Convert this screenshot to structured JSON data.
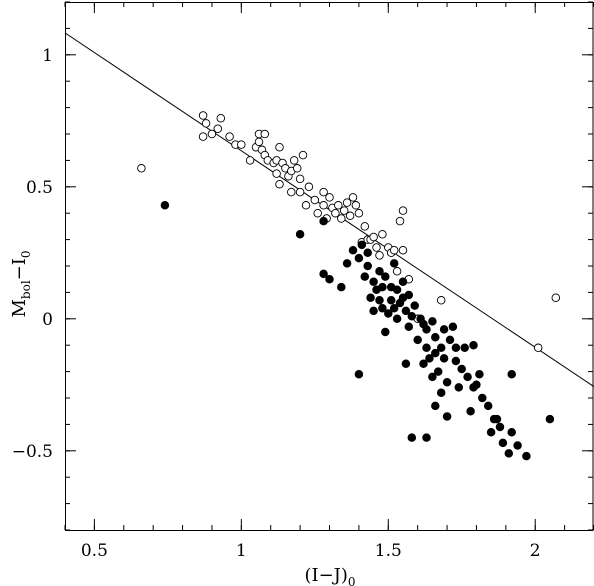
{
  "chart_data": {
    "type": "scatter",
    "title": "",
    "xlabel": "(I−J)",
    "xlabel_sub": "0",
    "ylabel_main": "M",
    "ylabel_sub1": "bol",
    "ylabel_mid": "−I",
    "ylabel_sub2": "0",
    "xlim": [
      0.4,
      2.2
    ],
    "ylim": [
      -0.8,
      1.2
    ],
    "x_ticks": [
      0.5,
      1,
      1.5,
      2
    ],
    "x_tick_labels": [
      "0.5",
      "1",
      "1.5",
      "2"
    ],
    "y_ticks": [
      -0.5,
      0,
      0.5,
      1
    ],
    "y_tick_labels": [
      "−0.5",
      "0",
      "0.5",
      "1"
    ],
    "x_minor_step": 0.1,
    "y_minor_step": 0.1,
    "grid": false,
    "series": [
      {
        "marker": "open-circle",
        "points": [
          [
            0.66,
            0.57
          ],
          [
            0.87,
            0.77
          ],
          [
            0.88,
            0.74
          ],
          [
            0.87,
            0.69
          ],
          [
            0.9,
            0.7
          ],
          [
            0.92,
            0.72
          ],
          [
            0.93,
            0.76
          ],
          [
            0.96,
            0.69
          ],
          [
            0.98,
            0.66
          ],
          [
            1.0,
            0.66
          ],
          [
            1.03,
            0.6
          ],
          [
            1.05,
            0.65
          ],
          [
            1.06,
            0.7
          ],
          [
            1.06,
            0.67
          ],
          [
            1.07,
            0.64
          ],
          [
            1.08,
            0.62
          ],
          [
            1.08,
            0.7
          ],
          [
            1.09,
            0.6
          ],
          [
            1.11,
            0.59
          ],
          [
            1.12,
            0.6
          ],
          [
            1.12,
            0.55
          ],
          [
            1.13,
            0.65
          ],
          [
            1.13,
            0.51
          ],
          [
            1.14,
            0.59
          ],
          [
            1.15,
            0.57
          ],
          [
            1.16,
            0.54
          ],
          [
            1.17,
            0.48
          ],
          [
            1.17,
            0.56
          ],
          [
            1.18,
            0.6
          ],
          [
            1.19,
            0.57
          ],
          [
            1.2,
            0.53
          ],
          [
            1.2,
            0.48
          ],
          [
            1.21,
            0.62
          ],
          [
            1.22,
            0.43
          ],
          [
            1.23,
            0.5
          ],
          [
            1.25,
            0.45
          ],
          [
            1.26,
            0.4
          ],
          [
            1.28,
            0.48
          ],
          [
            1.28,
            0.43
          ],
          [
            1.29,
            0.38
          ],
          [
            1.3,
            0.46
          ],
          [
            1.31,
            0.42
          ],
          [
            1.32,
            0.4
          ],
          [
            1.33,
            0.43
          ],
          [
            1.34,
            0.38
          ],
          [
            1.35,
            0.41
          ],
          [
            1.36,
            0.44
          ],
          [
            1.37,
            0.39
          ],
          [
            1.38,
            0.46
          ],
          [
            1.39,
            0.43
          ],
          [
            1.4,
            0.4
          ],
          [
            1.41,
            0.29
          ],
          [
            1.42,
            0.35
          ],
          [
            1.43,
            0.3
          ],
          [
            1.44,
            0.3
          ],
          [
            1.45,
            0.31
          ],
          [
            1.46,
            0.27
          ],
          [
            1.47,
            0.24
          ],
          [
            1.48,
            0.32
          ],
          [
            1.5,
            0.27
          ],
          [
            1.51,
            0.25
          ],
          [
            1.52,
            0.26
          ],
          [
            1.53,
            0.18
          ],
          [
            1.54,
            0.37
          ],
          [
            1.55,
            0.41
          ],
          [
            1.55,
            0.26
          ],
          [
            1.57,
            0.15
          ],
          [
            1.6,
            0.0
          ],
          [
            1.68,
            0.07
          ],
          [
            2.01,
            -0.11
          ],
          [
            2.07,
            0.08
          ]
        ]
      },
      {
        "marker": "filled-circle",
        "points": [
          [
            0.74,
            0.43
          ],
          [
            1.2,
            0.32
          ],
          [
            1.28,
            0.37
          ],
          [
            1.28,
            0.17
          ],
          [
            1.3,
            0.15
          ],
          [
            1.34,
            0.12
          ],
          [
            1.36,
            0.21
          ],
          [
            1.38,
            0.26
          ],
          [
            1.4,
            0.23
          ],
          [
            1.41,
            0.28
          ],
          [
            1.42,
            0.16
          ],
          [
            1.43,
            0.2
          ],
          [
            1.43,
            0.25
          ],
          [
            1.44,
            0.08
          ],
          [
            1.45,
            0.14
          ],
          [
            1.45,
            0.03
          ],
          [
            1.46,
            0.11
          ],
          [
            1.47,
            0.18
          ],
          [
            1.47,
            0.07
          ],
          [
            1.48,
            0.12
          ],
          [
            1.48,
            0.04
          ],
          [
            1.49,
            0.16
          ],
          [
            1.49,
            -0.05
          ],
          [
            1.5,
            0.02
          ],
          [
            1.51,
            0.12
          ],
          [
            1.51,
            0.07
          ],
          [
            1.52,
            0.21
          ],
          [
            1.52,
            0.04
          ],
          [
            1.53,
            0.11
          ],
          [
            1.53,
            0.0
          ],
          [
            1.54,
            0.06
          ],
          [
            1.55,
            0.14
          ],
          [
            1.55,
            0.08
          ],
          [
            1.56,
            0.03
          ],
          [
            1.56,
            -0.17
          ],
          [
            1.57,
            0.09
          ],
          [
            1.57,
            -0.03
          ],
          [
            1.58,
            0.01
          ],
          [
            1.59,
            0.05
          ],
          [
            1.6,
            -0.08
          ],
          [
            1.61,
            0.0
          ],
          [
            1.62,
            -0.02
          ],
          [
            1.62,
            -0.17
          ],
          [
            1.63,
            -0.04
          ],
          [
            1.63,
            -0.11
          ],
          [
            1.64,
            -0.15
          ],
          [
            1.65,
            -0.01
          ],
          [
            1.65,
            -0.22
          ],
          [
            1.66,
            -0.07
          ],
          [
            1.66,
            -0.13
          ],
          [
            1.66,
            -0.33
          ],
          [
            1.67,
            -0.2
          ],
          [
            1.68,
            -0.11
          ],
          [
            1.68,
            -0.28
          ],
          [
            1.69,
            -0.04
          ],
          [
            1.69,
            -0.15
          ],
          [
            1.7,
            -0.24
          ],
          [
            1.7,
            -0.37
          ],
          [
            1.71,
            -0.08
          ],
          [
            1.72,
            -0.03
          ],
          [
            1.73,
            -0.11
          ],
          [
            1.73,
            -0.16
          ],
          [
            1.74,
            -0.26
          ],
          [
            1.75,
            -0.19
          ],
          [
            1.76,
            -0.11
          ],
          [
            1.77,
            -0.22
          ],
          [
            1.78,
            -0.35
          ],
          [
            1.79,
            -0.26
          ],
          [
            1.79,
            -0.1
          ],
          [
            1.8,
            -0.25
          ],
          [
            1.81,
            -0.21
          ],
          [
            1.82,
            -0.3
          ],
          [
            1.84,
            -0.33
          ],
          [
            1.85,
            -0.43
          ],
          [
            1.86,
            -0.38
          ],
          [
            1.87,
            -0.38
          ],
          [
            1.88,
            -0.41
          ],
          [
            1.89,
            -0.47
          ],
          [
            1.91,
            -0.51
          ],
          [
            1.92,
            -0.43
          ],
          [
            1.92,
            -0.21
          ],
          [
            1.94,
            -0.48
          ],
          [
            1.97,
            -0.52
          ],
          [
            2.05,
            -0.38
          ],
          [
            1.4,
            -0.21
          ],
          [
            1.58,
            -0.45
          ],
          [
            1.63,
            -0.45
          ]
        ]
      }
    ],
    "fit_line": {
      "x": [
        0.4,
        2.2
      ],
      "y": [
        1.083,
        -0.257
      ]
    }
  }
}
